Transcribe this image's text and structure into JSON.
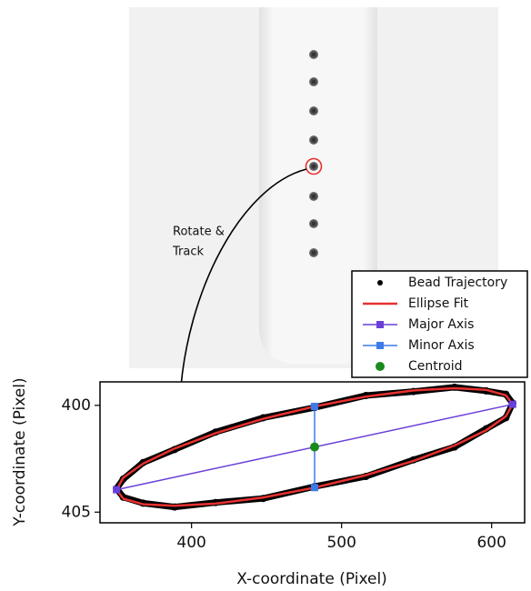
{
  "image": {
    "annotation": [
      "Rotate &",
      "Track"
    ]
  },
  "chart_data": {
    "type": "line",
    "x_label": "X-coordinate (Pixel)",
    "y_label": "Y-coordinate (Pixel)",
    "xlim": [
      339,
      622
    ],
    "xticks": [
      400,
      500,
      600
    ],
    "ylim": [
      398.9,
      405.5
    ],
    "yticks": [
      400,
      405
    ],
    "y_inverted": true,
    "legend": "upper right",
    "series": [
      {
        "name": "Bead Trajectory",
        "color": "#000000",
        "style": "trace",
        "x": [
          614,
          609.5,
          596.3,
          575.3,
          548,
          516.2,
          482,
          447.8,
          416,
          388.7,
          367.7,
          354.5,
          350,
          354.5,
          367.7,
          388.7,
          416,
          447.8,
          482,
          516.2,
          548,
          575.3,
          596.3,
          609.5,
          614
        ],
        "values": [
          399.9,
          400.58,
          401.1,
          401.95,
          402.55,
          403.33,
          403.8,
          404.36,
          404.55,
          404.76,
          404.58,
          404.3,
          403.9,
          403.45,
          402.68,
          402.07,
          401.25,
          400.58,
          400.1,
          399.54,
          399.35,
          399.15,
          399.32,
          399.48,
          399.9
        ]
      },
      {
        "name": "Ellipse Fit",
        "color": "#e8312f",
        "style": "line",
        "x": [
          614,
          609.5,
          596.3,
          575.3,
          548,
          516.2,
          482,
          447.8,
          416,
          388.7,
          367.7,
          354.5,
          350,
          354.5,
          367.7,
          388.7,
          416,
          447.8,
          482,
          516.2,
          548,
          575.3,
          596.3,
          609.5,
          614
        ],
        "values": [
          399.95,
          400.51,
          401.17,
          401.88,
          402.6,
          403.27,
          403.85,
          404.31,
          404.6,
          404.7,
          404.63,
          404.37,
          403.95,
          403.39,
          402.73,
          402.02,
          401.3,
          400.63,
          400.05,
          399.59,
          399.3,
          399.2,
          399.27,
          399.53,
          399.95
        ]
      },
      {
        "name": "Major Axis",
        "color": "#6a3fd8",
        "style": "line-square",
        "x": [
          350,
          614
        ],
        "values": [
          403.95,
          399.95
        ]
      },
      {
        "name": "Minor Axis",
        "color": "#3d7be8",
        "style": "line-square",
        "x": [
          482,
          482
        ],
        "values": [
          400.05,
          403.85
        ]
      },
      {
        "name": "Centroid",
        "color": "#1a8a1a",
        "style": "dot",
        "x": [
          482
        ],
        "values": [
          401.95
        ]
      }
    ]
  }
}
